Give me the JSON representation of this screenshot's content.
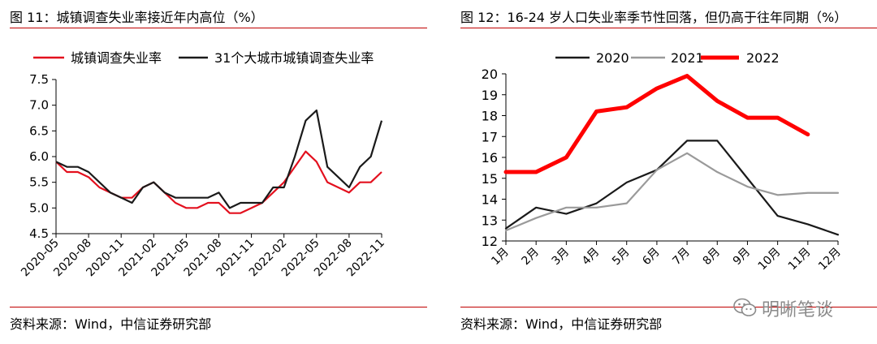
{
  "charts": [
    {
      "title": "图 11：城镇调查失业率接近年内高位（%）",
      "source": "资料来源：Wind，中信证券研究部"
    },
    {
      "title": "图 12：16-24 岁人口失业率季节性回落，但仍高于往年同期（%）",
      "source": "资料来源：Wind，中信证券研究部"
    }
  ],
  "watermark": {
    "text": "明晰笔谈",
    "icon": "wechat-icon"
  },
  "chart_data": [
    {
      "type": "line",
      "title": "",
      "xlabel": "",
      "ylabel": "",
      "x": [
        "2020-05",
        "2020-06",
        "2020-07",
        "2020-08",
        "2020-09",
        "2020-10",
        "2020-11",
        "2020-12",
        "2021-01",
        "2021-02",
        "2021-03",
        "2021-04",
        "2021-05",
        "2021-06",
        "2021-07",
        "2021-08",
        "2021-09",
        "2021-10",
        "2021-11",
        "2021-12",
        "2022-01",
        "2022-02",
        "2022-03",
        "2022-04",
        "2022-05",
        "2022-06",
        "2022-07",
        "2022-08",
        "2022-09",
        "2022-10",
        "2022-11"
      ],
      "xticks": [
        "2020-05",
        "2020-08",
        "2020-11",
        "2021-02",
        "2021-05",
        "2021-08",
        "2021-11",
        "2022-02",
        "2022-05",
        "2022-08",
        "2022-11"
      ],
      "ylim": [
        4.5,
        7.5
      ],
      "yticks": [
        "4.5",
        "5.0",
        "5.5",
        "6.0",
        "6.5",
        "7.0",
        "7.5"
      ],
      "grid": false,
      "legend": "top-left",
      "series": [
        {
          "name": "城镇调查失业率",
          "color": "#e3101e",
          "values": [
            5.9,
            5.7,
            5.7,
            5.6,
            5.4,
            5.3,
            5.2,
            5.2,
            5.4,
            5.5,
            5.3,
            5.1,
            5.0,
            5.0,
            5.1,
            5.1,
            4.9,
            4.9,
            5.0,
            5.1,
            5.3,
            5.5,
            5.8,
            6.1,
            5.9,
            5.5,
            5.4,
            5.3,
            5.5,
            5.5,
            5.7
          ]
        },
        {
          "name": "31个大城市城镇调查失业率",
          "color": "#1a1a1a",
          "values": [
            5.9,
            5.8,
            5.8,
            5.7,
            5.5,
            5.3,
            5.2,
            5.1,
            5.4,
            5.5,
            5.3,
            5.2,
            5.2,
            5.2,
            5.2,
            5.3,
            5.0,
            5.1,
            5.1,
            5.1,
            5.4,
            5.4,
            6.0,
            6.7,
            6.9,
            5.8,
            5.6,
            5.4,
            5.8,
            6.0,
            6.7
          ]
        }
      ]
    },
    {
      "type": "line",
      "title": "",
      "xlabel": "",
      "ylabel": "",
      "categories": [
        "1月",
        "2月",
        "3月",
        "4月",
        "5月",
        "6月",
        "7月",
        "8月",
        "9月",
        "10月",
        "11月",
        "12月"
      ],
      "ylim": [
        12,
        20
      ],
      "yticks": [
        "12",
        "13",
        "14",
        "15",
        "16",
        "17",
        "18",
        "19",
        "20"
      ],
      "grid": false,
      "legend": "top",
      "series": [
        {
          "name": "2020",
          "color": "#1a1a1a",
          "values": [
            12.6,
            13.6,
            13.3,
            13.8,
            14.8,
            15.4,
            16.8,
            16.8,
            15.0,
            13.2,
            12.8,
            12.3
          ]
        },
        {
          "name": "2021",
          "color": "#9a9a9a",
          "values": [
            12.5,
            13.1,
            13.6,
            13.6,
            13.8,
            15.4,
            16.2,
            15.3,
            14.6,
            14.2,
            14.3,
            14.3
          ]
        },
        {
          "name": "2022",
          "color": "#ff0000",
          "values": [
            15.3,
            15.3,
            16.0,
            18.2,
            18.4,
            19.3,
            19.9,
            18.7,
            17.9,
            17.9,
            17.1,
            null
          ]
        }
      ]
    }
  ]
}
